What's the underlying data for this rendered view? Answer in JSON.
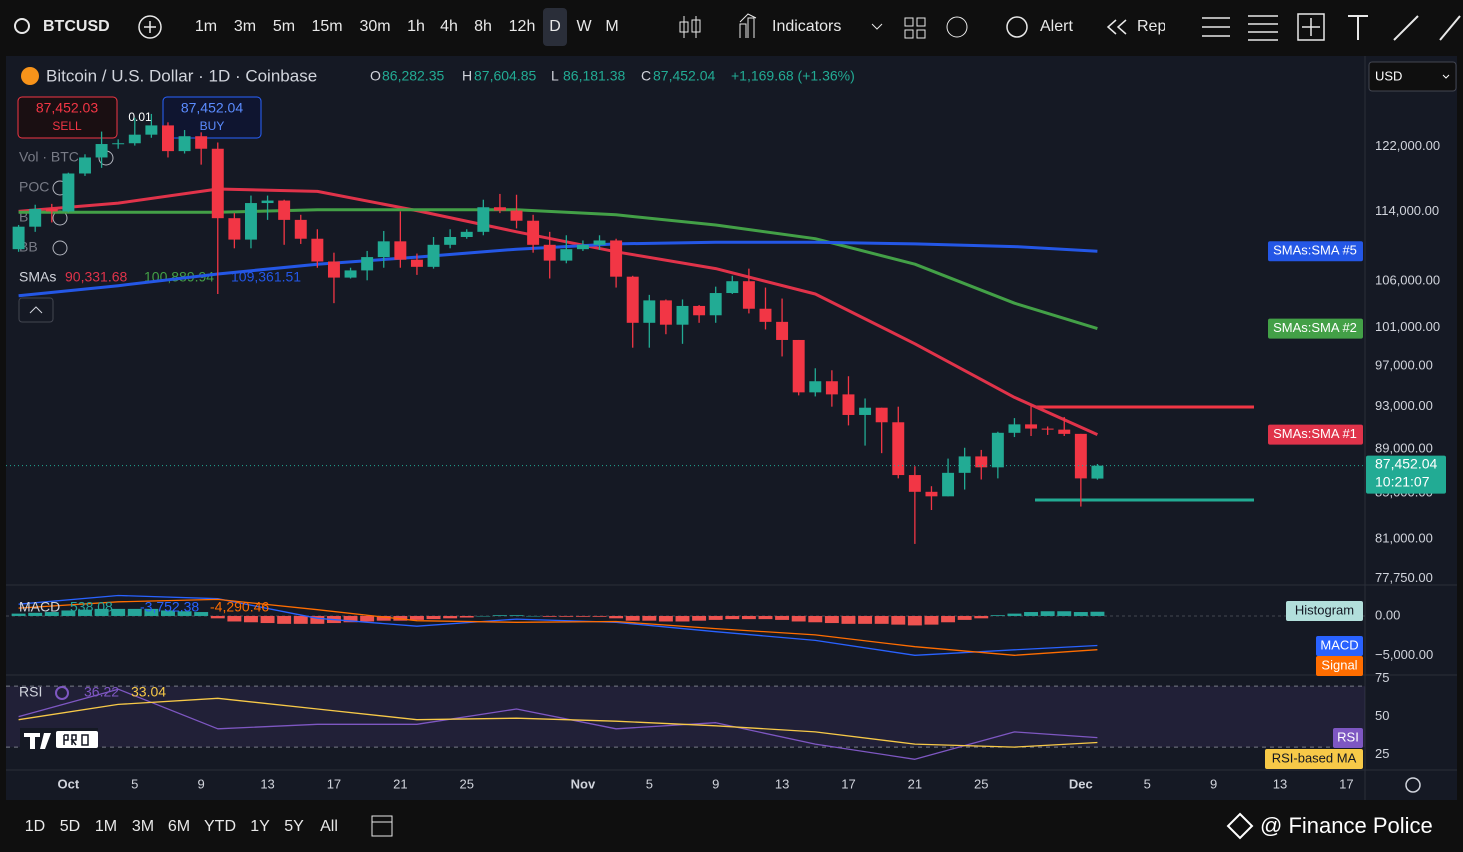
{
  "toolbar": {
    "symbol": "BTCUSD",
    "intervals": [
      "1m",
      "3m",
      "5m",
      "15m",
      "30m",
      "1h",
      "4h",
      "8h",
      "12h",
      "D",
      "W",
      "M"
    ],
    "indicators": "Indicators",
    "alert": "Alert",
    "replay": "Rep"
  },
  "legend": {
    "title": "Bitcoin / U.S. Dollar · 1D · Coinbase",
    "ohlc_letters": [
      "O",
      "H",
      "L",
      "C"
    ],
    "ohlc_value_labels": [
      "86,282.35",
      "87,604.85",
      "86,181.38",
      "87,452.04"
    ],
    "change": "+1,169.68 (+1.36%)",
    "sell_price": "87,452.03",
    "sell": "SELL",
    "spread": "0.01",
    "buy_price": "87,452.04",
    "buy": "BUY",
    "indicators": [
      "Vol · BTC",
      "POC",
      "BB",
      "BB"
    ],
    "sma_label": "SMAs",
    "currency": "USD",
    "last_price_label": "87,452.04",
    "countdown": "10:21:07"
  },
  "chart_data": {
    "type": "candlestick",
    "log_scale": true,
    "grid": false,
    "up_color": "#22ab94",
    "down_color": "#f23645",
    "xlim": [
      "Sep 27",
      "Dec 18"
    ],
    "xticks": [
      {
        "value": "Oct 1",
        "label": "Oct"
      },
      {
        "value": "Oct 5",
        "label": "5"
      },
      {
        "value": "Oct 9",
        "label": "9"
      },
      {
        "value": "Oct 13",
        "label": "13"
      },
      {
        "value": "Oct 17",
        "label": "17"
      },
      {
        "value": "Oct 21",
        "label": "21"
      },
      {
        "value": "Oct 25",
        "label": "25"
      },
      {
        "value": "Nov 1",
        "label": "Nov"
      },
      {
        "value": "Nov 5",
        "label": "5"
      },
      {
        "value": "Nov 9",
        "label": "9"
      },
      {
        "value": "Nov 13",
        "label": "13"
      },
      {
        "value": "Nov 17",
        "label": "17"
      },
      {
        "value": "Nov 21",
        "label": "21"
      },
      {
        "value": "Nov 25",
        "label": "25"
      },
      {
        "value": "Dec 1",
        "label": "Dec"
      },
      {
        "value": "Dec 5",
        "label": "5"
      },
      {
        "value": "Dec 9",
        "label": "9"
      },
      {
        "value": "Dec 13",
        "label": "13"
      },
      {
        "value": "Dec 17",
        "label": "17"
      }
    ],
    "ylim": [
      77300,
      133500
    ],
    "yticks": [
      {
        "value": 122000,
        "label": "122,000.00"
      },
      {
        "value": 114000,
        "label": "114,000.00"
      },
      {
        "value": 106000,
        "label": "106,000.00"
      },
      {
        "value": 101000,
        "label": "101,000.00"
      },
      {
        "value": 97000,
        "label": "97,000.00"
      },
      {
        "value": 93000,
        "label": "93,000.00"
      },
      {
        "value": 89000,
        "label": "89,000.00"
      },
      {
        "value": 85000,
        "label": "85,000.00"
      },
      {
        "value": 81000,
        "label": "81,000.00"
      },
      {
        "value": 77750,
        "label": "77,750.00"
      }
    ],
    "x": [
      "Sep 28",
      "Sep 29",
      "Sep 30",
      "Oct 1",
      "Oct 2",
      "Oct 3",
      "Oct 4",
      "Oct 5",
      "Oct 6",
      "Oct 7",
      "Oct 8",
      "Oct 9",
      "Oct 10",
      "Oct 11",
      "Oct 12",
      "Oct 13",
      "Oct 14",
      "Oct 15",
      "Oct 16",
      "Oct 17",
      "Oct 18",
      "Oct 19",
      "Oct 20",
      "Oct 21",
      "Oct 22",
      "Oct 23",
      "Oct 24",
      "Oct 25",
      "Oct 26",
      "Oct 27",
      "Oct 28",
      "Oct 29",
      "Oct 30",
      "Oct 31",
      "Nov 1",
      "Nov 2",
      "Nov 3",
      "Nov 4",
      "Nov 5",
      "Nov 6",
      "Nov 7",
      "Nov 8",
      "Nov 9",
      "Nov 10",
      "Nov 11",
      "Nov 12",
      "Nov 13",
      "Nov 14",
      "Nov 15",
      "Nov 16",
      "Nov 17",
      "Nov 18",
      "Nov 19",
      "Nov 20",
      "Nov 21",
      "Nov 22",
      "Nov 23",
      "Nov 24",
      "Nov 25",
      "Nov 26",
      "Nov 27",
      "Nov 28",
      "Nov 29",
      "Nov 30",
      "Dec 1",
      "Dec 2"
    ],
    "ohlc": [
      [
        109600,
        112400,
        109300,
        112200
      ],
      [
        112200,
        114800,
        111600,
        114300
      ],
      [
        114300,
        114900,
        112700,
        114000
      ],
      [
        114000,
        118700,
        113900,
        118600
      ],
      [
        118600,
        121000,
        118300,
        120600
      ],
      [
        120600,
        123900,
        119300,
        122300
      ],
      [
        122300,
        122900,
        121700,
        122400
      ],
      [
        122400,
        125700,
        122100,
        123500
      ],
      [
        123500,
        126200,
        123100,
        124700
      ],
      [
        124700,
        125100,
        120600,
        121400
      ],
      [
        121400,
        124100,
        121100,
        123300
      ],
      [
        123300,
        123800,
        119700,
        121700
      ],
      [
        121700,
        122500,
        104600,
        113200
      ],
      [
        113200,
        113800,
        109700,
        110700
      ],
      [
        110700,
        115900,
        109700,
        115000
      ],
      [
        115000,
        115900,
        113000,
        115300
      ],
      [
        115300,
        115400,
        110100,
        113000
      ],
      [
        113000,
        113600,
        110200,
        110800
      ],
      [
        110800,
        111900,
        107500,
        108200
      ],
      [
        108200,
        109200,
        103600,
        106400
      ],
      [
        106400,
        107500,
        106300,
        107200
      ],
      [
        107200,
        109400,
        106100,
        108700
      ],
      [
        108700,
        111700,
        107500,
        110500
      ],
      [
        110500,
        114000,
        107500,
        108400
      ],
      [
        108400,
        109100,
        106700,
        107600
      ],
      [
        107600,
        111000,
        107400,
        110100
      ],
      [
        110100,
        111900,
        109700,
        111000
      ],
      [
        111000,
        111900,
        110800,
        111600
      ],
      [
        111600,
        115400,
        111200,
        114500
      ],
      [
        114500,
        116100,
        113800,
        114100
      ],
      [
        114100,
        116000,
        112000,
        112900
      ],
      [
        112900,
        113600,
        109200,
        110100
      ],
      [
        110100,
        111600,
        106300,
        108300
      ],
      [
        108300,
        111200,
        108000,
        109600
      ],
      [
        109600,
        110600,
        109400,
        110100
      ],
      [
        110100,
        111200,
        109500,
        110600
      ],
      [
        110600,
        110800,
        105300,
        106500
      ],
      [
        106500,
        106600,
        98900,
        101500
      ],
      [
        101500,
        104500,
        98900,
        103900
      ],
      [
        103900,
        104000,
        100300,
        101300
      ],
      [
        101300,
        104000,
        99300,
        103300
      ],
      [
        103300,
        103400,
        101500,
        102300
      ],
      [
        102300,
        105400,
        101500,
        104700
      ],
      [
        104700,
        106600,
        104600,
        106000
      ],
      [
        106000,
        107400,
        102500,
        103000
      ],
      [
        103000,
        105300,
        100800,
        101600
      ],
      [
        101600,
        104100,
        98000,
        99700
      ],
      [
        99700,
        99700,
        94100,
        94400
      ],
      [
        94400,
        96800,
        94000,
        95500
      ],
      [
        95500,
        96600,
        93000,
        94200
      ],
      [
        94200,
        96000,
        91200,
        92200
      ],
      [
        92200,
        93800,
        89300,
        92900
      ],
      [
        92900,
        92900,
        88600,
        91500
      ],
      [
        91500,
        93000,
        86300,
        86600
      ],
      [
        86600,
        87400,
        80600,
        85100
      ],
      [
        85100,
        85600,
        83500,
        84700
      ],
      [
        84700,
        88100,
        84700,
        86800
      ],
      [
        86800,
        89100,
        85300,
        88300
      ],
      [
        88300,
        88900,
        86200,
        87300
      ],
      [
        87300,
        90600,
        86300,
        90500
      ],
      [
        90500,
        91900,
        90100,
        91300
      ],
      [
        91300,
        93100,
        90200,
        90900
      ],
      [
        90900,
        91100,
        90300,
        90800
      ],
      [
        90800,
        92000,
        90200,
        90400
      ],
      [
        90400,
        90400,
        83800,
        86300
      ],
      [
        86282.35,
        87604.85,
        86181.38,
        87452.04
      ]
    ],
    "line_dates": [
      "Sep 28",
      "Oct 4",
      "Oct 10",
      "Oct 16",
      "Oct 22",
      "Oct 28",
      "Nov 3",
      "Nov 9",
      "Nov 15",
      "Nov 21",
      "Nov 27",
      "Dec 2"
    ],
    "sma": [
      {
        "name": "SMAs:SMA #1",
        "color": "#e0334a",
        "last_label": "90,331.68",
        "values": [
          114000,
          115000,
          116700,
          116400,
          114100,
          111600,
          109300,
          107400,
          104600,
          99300,
          93900,
          90331.68
        ]
      },
      {
        "name": "SMAs:SMA #2",
        "color": "#43a047",
        "last_label": "100,889.94",
        "values": [
          113900,
          113900,
          113900,
          114200,
          114200,
          114200,
          113600,
          112400,
          110800,
          107900,
          103600,
          100889.94
        ]
      },
      {
        "name": "SMAs:SMA #5",
        "color": "#2457e6",
        "last_label": "109,361.51",
        "values": [
          104400,
          105500,
          106800,
          107900,
          108700,
          109600,
          110200,
          110400,
          110400,
          110200,
          109900,
          109361.51
        ]
      }
    ],
    "macd": {
      "name": "MACD",
      "ylim": [
        -7500,
        3300
      ],
      "yticks": [
        {
          "value": 0,
          "label": "0.00"
        },
        {
          "value": -5000,
          "label": "−5,000.00"
        }
      ],
      "histogram_name": "Histogram",
      "histogram_colors": [
        "#26a69a",
        "#ef5350"
      ],
      "histogram": [
        300,
        400,
        500,
        700,
        800,
        900,
        900,
        900,
        900,
        700,
        600,
        500,
        -300,
        -700,
        -800,
        -900,
        -1000,
        -1000,
        -1000,
        -900,
        -800,
        -700,
        -600,
        -600,
        -500,
        -400,
        -300,
        -200,
        0,
        100,
        100,
        0,
        -100,
        -100,
        -100,
        -100,
        -300,
        -600,
        -600,
        -700,
        -700,
        -600,
        -500,
        -400,
        -400,
        -400,
        -500,
        -700,
        -800,
        -900,
        -1000,
        -1000,
        -1000,
        -1100,
        -1200,
        -1100,
        -800,
        -500,
        -300,
        100,
        300,
        500,
        600,
        600,
        500,
        538.08
      ],
      "histogram_last_label": "538.08",
      "series": [
        {
          "name": "MACD",
          "color": "#2962ff",
          "last_label": "-3,752.38",
          "values": [
            1500,
            2600,
            2200,
            -300,
            -1300,
            -400,
            -800,
            -2000,
            -3100,
            -5000,
            -4300,
            -3752.38
          ]
        },
        {
          "name": "Signal",
          "color": "#ff6d00",
          "last_label": "-4,290.46",
          "values": [
            1000,
            1800,
            2100,
            800,
            -600,
            -800,
            -700,
            -1600,
            -2400,
            -3900,
            -5000,
            -4290.46
          ]
        }
      ]
    },
    "rsi": {
      "name": "RSI",
      "ylim": [
        15,
        76
      ],
      "yticks": [
        75,
        50,
        25
      ],
      "bands": [
        70,
        30
      ],
      "series": [
        {
          "name": "RSI",
          "color": "#7e57c2",
          "last_label": "36.22",
          "values": [
            50,
            68,
            42,
            45,
            45,
            55,
            42,
            46,
            32,
            22,
            40,
            36.22
          ]
        },
        {
          "name": "RSI-based MA",
          "color": "#f7c948",
          "last_label": "33.04",
          "values": [
            48,
            58,
            62,
            55,
            48,
            49,
            47,
            44,
            40,
            32,
            30,
            33.04
          ]
        }
      ]
    }
  },
  "bottom_bar": {
    "ranges": [
      "1D",
      "5D",
      "1M",
      "3M",
      "6M",
      "YTD",
      "1Y",
      "5Y",
      "All"
    ],
    "watermark": "@ Finance Police"
  }
}
